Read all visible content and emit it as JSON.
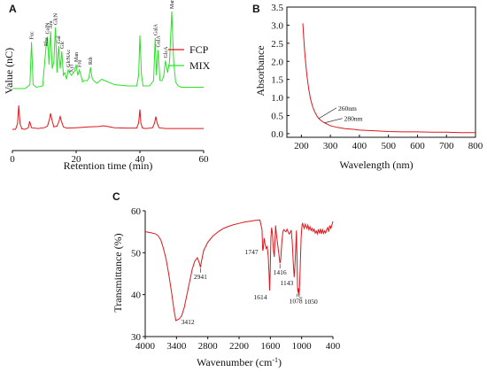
{
  "chart_data": [
    {
      "panel": "A",
      "type": "line",
      "xlabel": "Retention time (min)",
      "ylabel": "Value (nC)",
      "xlim": [
        0,
        60
      ],
      "xticks": [
        0,
        20,
        40,
        60
      ],
      "legend": {
        "position": "top-right"
      },
      "series": [
        {
          "name": "FCP",
          "color": "#e0161b",
          "x": [
            0,
            1.0,
            1.6,
            2.0,
            2.4,
            3.0,
            4.0,
            5.0,
            5.4,
            6.0,
            8.0,
            10.0,
            11.0,
            11.6,
            12.0,
            12.4,
            13.0,
            14.0,
            14.6,
            15.0,
            15.4,
            16.0,
            17.0,
            20.0,
            24.0,
            27.0,
            28.5,
            30.0,
            32.0,
            36.0,
            39.0,
            39.6,
            40.0,
            40.3,
            40.8,
            42.0,
            44.0,
            44.6,
            45.0,
            45.4,
            46.0,
            48.0,
            52.0,
            56.0,
            60.0
          ],
          "y": [
            0,
            0,
            0.7,
            3.0,
            0.7,
            0.05,
            0,
            0.2,
            1.0,
            0.2,
            0.1,
            0.2,
            0.4,
            1.2,
            2.0,
            1.2,
            0.3,
            0.4,
            1.0,
            1.6,
            1.0,
            0.3,
            0.15,
            0.2,
            0.3,
            0.35,
            0.45,
            0.35,
            0.2,
            0.15,
            0.15,
            0.8,
            2.5,
            0.8,
            0.15,
            0.1,
            0.2,
            0.8,
            1.6,
            0.8,
            0.2,
            0.1,
            0.1,
            0.1,
            0.1
          ]
        },
        {
          "name": "MIX",
          "color": "#2ce028",
          "x": [
            0,
            4.0,
            5.5,
            6.0,
            6.5,
            7.5,
            9.5,
            10.5,
            11.0,
            11.5,
            12.0,
            12.5,
            13.0,
            13.5,
            14.0,
            14.5,
            15.0,
            15.5,
            16.0,
            16.5,
            17.0,
            17.5,
            18.0,
            18.5,
            19.5,
            20.0,
            20.5,
            21.0,
            21.5,
            22.0,
            22.5,
            23.5,
            24.0,
            24.5,
            25.0,
            25.5,
            26.5,
            28.0,
            30.0,
            32.0,
            36.0,
            39.0,
            39.6,
            40.0,
            40.5,
            41.0,
            43.0,
            44.3,
            44.8,
            45.2,
            45.7,
            46.3,
            47.0,
            47.5,
            48.0,
            48.7,
            49.3,
            50.0,
            50.6,
            51.2,
            52.0,
            53.0,
            56.0,
            60.0
          ],
          "y": [
            0,
            0,
            0.3,
            3.5,
            0.3,
            0.1,
            0.2,
            3.0,
            3.9,
            1.8,
            4.3,
            1.5,
            2.0,
            4.6,
            1.2,
            3.2,
            1.5,
            2.8,
            1.0,
            1.2,
            0.7,
            1.4,
            1.2,
            1.0,
            1.3,
            1.8,
            1.0,
            1.4,
            1.0,
            0.5,
            0.6,
            0.6,
            0.8,
            1.6,
            0.8,
            0.6,
            0.4,
            0.7,
            0.5,
            0.3,
            0.2,
            0.2,
            1.0,
            4.0,
            1.0,
            0.2,
            0.2,
            0.6,
            3.8,
            1.0,
            2.9,
            0.6,
            0.6,
            1.0,
            2.1,
            1.2,
            2.0,
            5.8,
            2.0,
            0.5,
            0.2,
            0.1,
            0.1,
            0.1
          ]
        }
      ],
      "annotations": [
        {
          "label": "Fuc",
          "x": 6.0
        },
        {
          "label": "Rha",
          "x": 10.5
        },
        {
          "label": "GalN",
          "x": 11.0
        },
        {
          "label": "Ara",
          "x": 12.0
        },
        {
          "label": "GlcN",
          "x": 13.5
        },
        {
          "label": "Gal",
          "x": 14.5
        },
        {
          "label": "Glc",
          "x": 15.5
        },
        {
          "label": "GlcNAc",
          "x": 17.5
        },
        {
          "label": "Xyl",
          "x": 18.5
        },
        {
          "label": "Man",
          "x": 20.0
        },
        {
          "label": "Fru",
          "x": 21.0
        },
        {
          "label": "Rib",
          "x": 24.5
        },
        {
          "label": "GalA",
          "x": 44.8
        },
        {
          "label": "GulA",
          "x": 45.7
        },
        {
          "label": "GlcA",
          "x": 48.0
        },
        {
          "label": "ManA",
          "x": 50.0
        }
      ]
    },
    {
      "panel": "B",
      "type": "line",
      "xlabel": "Wavelength (nm)",
      "ylabel": "Absorbance",
      "xlim": [
        150,
        800
      ],
      "ylim": [
        -0.1,
        3.5
      ],
      "xticks": [
        200,
        300,
        400,
        500,
        600,
        700,
        800
      ],
      "yticks": [
        0.0,
        0.5,
        1.0,
        1.5,
        2.0,
        2.5,
        3.0,
        3.5
      ],
      "series": [
        {
          "color": "#e0161b",
          "x": [
            205,
            208,
            212,
            216,
            220,
            225,
            230,
            235,
            240,
            245,
            250,
            255,
            260,
            265,
            270,
            275,
            280,
            290,
            300,
            320,
            350,
            380,
            400,
            450,
            500,
            550,
            600,
            650,
            700,
            750,
            800
          ],
          "y": [
            3.05,
            2.65,
            2.2,
            1.85,
            1.55,
            1.25,
            1.02,
            0.85,
            0.72,
            0.62,
            0.54,
            0.47,
            0.42,
            0.38,
            0.35,
            0.32,
            0.3,
            0.26,
            0.22,
            0.18,
            0.14,
            0.12,
            0.1,
            0.08,
            0.06,
            0.05,
            0.05,
            0.04,
            0.04,
            0.03,
            0.03
          ]
        }
      ],
      "annotations": [
        {
          "label": "260nm",
          "x": 260,
          "y": 0.42
        },
        {
          "label": "280nm",
          "x": 280,
          "y": 0.3
        }
      ]
    },
    {
      "panel": "C",
      "type": "line",
      "xlabel": "Wavenumber (cm",
      "xlabel_sup": "-1",
      "xlabel_end": ")",
      "ylabel": "Transmittance (%)",
      "xlim": [
        4000,
        400
      ],
      "ylim": [
        30,
        60
      ],
      "xticks": [
        4000,
        3400,
        2800,
        2200,
        1600,
        1000,
        400
      ],
      "yticks": [
        30,
        40,
        50,
        60
      ],
      "series": [
        {
          "color": "#e0161b",
          "x": [
            4000,
            3900,
            3800,
            3750,
            3700,
            3650,
            3600,
            3550,
            3500,
            3450,
            3412,
            3380,
            3340,
            3300,
            3250,
            3200,
            3150,
            3100,
            3050,
            3000,
            2960,
            2941,
            2920,
            2880,
            2800,
            2700,
            2600,
            2500,
            2400,
            2300,
            2200,
            2100,
            2000,
            1900,
            1800,
            1760,
            1747,
            1735,
            1720,
            1700,
            1680,
            1660,
            1640,
            1625,
            1614,
            1600,
            1590,
            1575,
            1560,
            1540,
            1525,
            1515,
            1500,
            1480,
            1460,
            1440,
            1416,
            1400,
            1380,
            1360,
            1340,
            1320,
            1300,
            1280,
            1260,
            1240,
            1220,
            1200,
            1180,
            1160,
            1143,
            1130,
            1115,
            1100,
            1085,
            1078,
            1070,
            1060,
            1050,
            1040,
            1030,
            1020,
            1010,
            1000,
            990,
            980,
            970,
            950,
            930,
            900,
            880,
            860,
            840,
            820,
            800,
            780,
            760,
            740,
            720,
            700,
            680,
            660,
            640,
            620,
            600,
            580,
            560,
            540,
            520,
            500,
            480,
            460,
            440,
            420,
            400
          ],
          "y": [
            55,
            54.8,
            54.5,
            54,
            53,
            51,
            48.5,
            45,
            41,
            36.5,
            33.8,
            34,
            34.3,
            35,
            37,
            40,
            43,
            46,
            48,
            48.8,
            47.5,
            46.5,
            48,
            50.5,
            52.5,
            54,
            55,
            55.8,
            56.3,
            56.7,
            57,
            57.3,
            57.5,
            57.7,
            57.8,
            55.5,
            50.5,
            51,
            53.5,
            52,
            51,
            51.5,
            49,
            45,
            41,
            47,
            53.5,
            56,
            54.5,
            50.5,
            49,
            51.5,
            56.5,
            54,
            52,
            50,
            47.5,
            48.5,
            52.5,
            55,
            55.5,
            55.2,
            55,
            55.6,
            55,
            54.5,
            54.8,
            55.4,
            52.5,
            47.5,
            44.2,
            46.5,
            50.5,
            55.3,
            46,
            41.5,
            40.5,
            41.5,
            39.5,
            42,
            45.5,
            49.5,
            53.5,
            55.5,
            56.8,
            57,
            56.5,
            55.8,
            56.8,
            55.8,
            56.6,
            55.5,
            56.2,
            55.3,
            55.8,
            55.1,
            55.6,
            54.7,
            55.2,
            54.5,
            55.6,
            54.6,
            55.7,
            54.5,
            55.5,
            54.6,
            55.2,
            54.7,
            55.5,
            56,
            55,
            56.5,
            55.8,
            56.6,
            57.5
          ],
          "peaks": [
            {
              "label": "3412",
              "x": 3412,
              "y": 33.8
            },
            {
              "label": "2941",
              "x": 2941,
              "y": 46.5
            },
            {
              "label": "1747",
              "x": 1747,
              "y": 50.5
            },
            {
              "label": "1614",
              "x": 1614,
              "y": 41
            },
            {
              "label": "1416",
              "x": 1416,
              "y": 47.5
            },
            {
              "label": "1143",
              "x": 1143,
              "y": 44.2
            },
            {
              "label": "1078",
              "x": 1078,
              "y": 40.5
            },
            {
              "label": "1050",
              "x": 1050,
              "y": 39.5
            }
          ]
        }
      ]
    }
  ]
}
